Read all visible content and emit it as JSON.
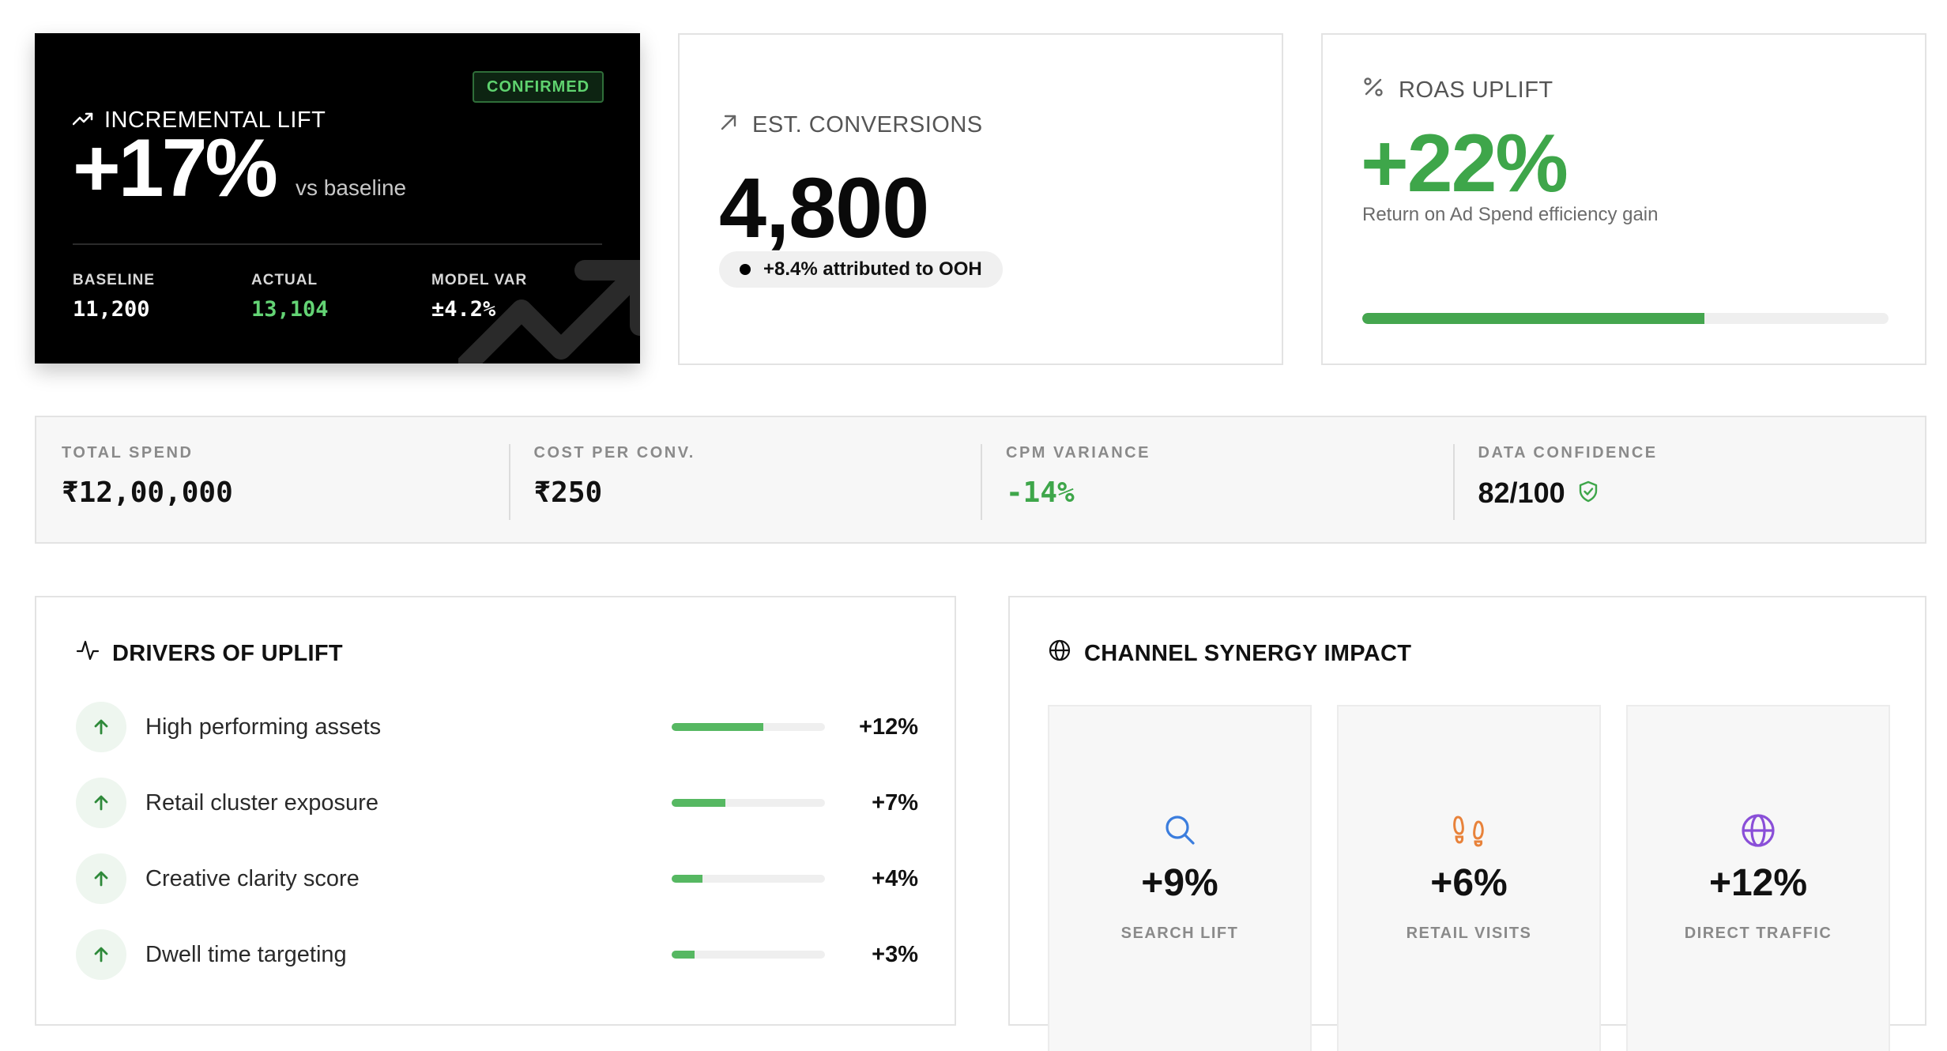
{
  "lift_card": {
    "title": "INCREMENTAL LIFT",
    "badge": "CONFIRMED",
    "value": "+17%",
    "vs": "vs baseline",
    "stats": [
      {
        "label": "BASELINE",
        "value": "11,200"
      },
      {
        "label": "ACTUAL",
        "value": "13,104"
      },
      {
        "label": "MODEL VAR",
        "value": "±4.2%"
      }
    ]
  },
  "conversions_card": {
    "title": "EST. CONVERSIONS",
    "value": "4,800",
    "pill": "+8.4% attributed to OOH"
  },
  "roas_card": {
    "title": "ROAS UPLIFT",
    "value": "+22%",
    "subtitle": "Return on Ad Spend efficiency gain",
    "progress": 0.65
  },
  "summary": [
    {
      "label": "TOTAL SPEND",
      "value": "₹12,00,000"
    },
    {
      "label": "COST PER CONV.",
      "value": "₹250"
    },
    {
      "label": "CPM VARIANCE",
      "value": "-14%"
    },
    {
      "label": "DATA CONFIDENCE",
      "value": "82/100"
    }
  ],
  "drivers": {
    "title": "DRIVERS OF UPLIFT",
    "items": [
      {
        "name": "High performing assets",
        "pct": "+12%",
        "fill": 0.6
      },
      {
        "name": "Retail cluster exposure",
        "pct": "+7%",
        "fill": 0.35
      },
      {
        "name": "Creative clarity score",
        "pct": "+4%",
        "fill": 0.2
      },
      {
        "name": "Dwell time targeting",
        "pct": "+3%",
        "fill": 0.15
      }
    ]
  },
  "synergy": {
    "title": "CHANNEL SYNERGY IMPACT",
    "tiles": [
      {
        "value": "+9%",
        "label": "SEARCH LIFT",
        "icon": "search-icon"
      },
      {
        "value": "+6%",
        "label": "RETAIL VISITS",
        "icon": "footprints-icon"
      },
      {
        "value": "+12%",
        "label": "DIRECT TRAFFIC",
        "icon": "globe-icon"
      }
    ]
  },
  "colors": {
    "accent_green": "#3ea64a",
    "orange": "#e8823a",
    "purple": "#8a4fd8",
    "blue": "#3b7ddd"
  }
}
